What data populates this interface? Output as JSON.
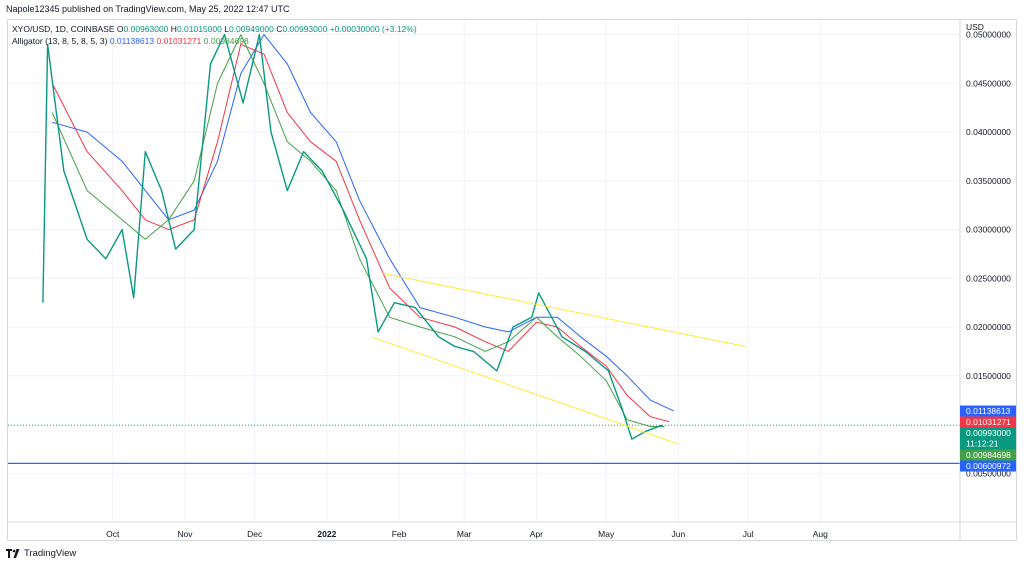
{
  "header": {
    "published": "Napole12345 published on TradingView.com, May 25, 2022 12:47 UTC"
  },
  "legend": {
    "symbol": "XYO/USD, 1D, COINBASE",
    "open_label": "O",
    "open": "0.00963000",
    "high_label": "H",
    "high": "0.01015000",
    "low_label": "L",
    "low": "0.00949000",
    "close_label": "C",
    "close": "0.00993000",
    "change": "+0.00030000 (+3.12%)",
    "indicator": "Alligator (13, 8, 5, 8, 5, 3)",
    "jaw": "0.01138613",
    "teeth": "0.01031271",
    "lips": "0.00984698"
  },
  "footer": {
    "brand": "TradingView"
  },
  "colors": {
    "up": "#089981",
    "down": "#f23645",
    "jaw": "#2962ff",
    "teeth": "#f23645",
    "lips": "#43a047",
    "channel": "#ffeb3b",
    "support": "#2962ff"
  },
  "chart_data": {
    "type": "line",
    "currency": "USD",
    "y_ticks": [
      "0.00500000",
      "0.01500000",
      "0.02000000",
      "0.02500000",
      "0.03000000",
      "0.03500000",
      "0.04000000",
      "0.04500000",
      "0.05000000"
    ],
    "y_tick_values": [
      0.005,
      0.015,
      0.02,
      0.025,
      0.03,
      0.035,
      0.04,
      0.045,
      0.05
    ],
    "ylim": [
      0.0,
      0.0515
    ],
    "x_ticks": [
      "Oct",
      "Nov",
      "Dec",
      "2022",
      "Feb",
      "Mar",
      "Apr",
      "May",
      "Jun",
      "Jul",
      "Aug"
    ],
    "x_tick_dates": [
      "2021-10-01",
      "2021-11-01",
      "2021-12-01",
      "2022-01-01",
      "2022-02-01",
      "2022-03-01",
      "2022-04-01",
      "2022-05-01",
      "2022-06-01",
      "2022-07-01",
      "2022-08-01"
    ],
    "xlim": [
      "2021-08-17",
      "2022-09-30"
    ],
    "price_labels": [
      {
        "name": "Jaw",
        "value": 0.01138613,
        "text": "0.01138613",
        "color": "#2962ff"
      },
      {
        "name": "Teeth",
        "value": 0.01031271,
        "text": "0.01031271",
        "color": "#f23645"
      },
      {
        "name": "Close",
        "value": 0.00993,
        "text": "0.00993000",
        "sub": "11:12:21",
        "color": "#089981"
      },
      {
        "name": "Lips",
        "value": 0.00984698,
        "text": "0.00984698",
        "color": "#43a047"
      },
      {
        "name": "Support",
        "value": 0.00600972,
        "text": "0.00600972",
        "color": "#2962ff"
      }
    ],
    "series": [
      {
        "name": "Jaw",
        "color": "#2962ff",
        "points": [
          [
            "2021-09-05",
            0.041
          ],
          [
            "2021-09-20",
            0.04
          ],
          [
            "2021-10-05",
            0.037
          ],
          [
            "2021-10-15",
            0.034
          ],
          [
            "2021-10-25",
            0.031
          ],
          [
            "2021-11-05",
            0.032
          ],
          [
            "2021-11-15",
            0.037
          ],
          [
            "2021-11-25",
            0.046
          ],
          [
            "2021-12-05",
            0.05
          ],
          [
            "2021-12-15",
            0.047
          ],
          [
            "2021-12-25",
            0.042
          ],
          [
            "2022-01-05",
            0.039
          ],
          [
            "2022-01-15",
            0.033
          ],
          [
            "2022-01-28",
            0.027
          ],
          [
            "2022-02-10",
            0.022
          ],
          [
            "2022-02-25",
            0.021
          ],
          [
            "2022-03-10",
            0.02
          ],
          [
            "2022-03-20",
            0.0195
          ],
          [
            "2022-04-01",
            0.021
          ],
          [
            "2022-04-10",
            0.021
          ],
          [
            "2022-04-20",
            0.019
          ],
          [
            "2022-05-01",
            0.017
          ],
          [
            "2022-05-10",
            0.015
          ],
          [
            "2022-05-20",
            0.0125
          ],
          [
            "2022-05-30",
            0.0114
          ]
        ]
      },
      {
        "name": "Teeth",
        "color": "#f23645",
        "points": [
          [
            "2021-09-05",
            0.045
          ],
          [
            "2021-09-20",
            0.038
          ],
          [
            "2021-10-05",
            0.034
          ],
          [
            "2021-10-15",
            0.031
          ],
          [
            "2021-10-25",
            0.03
          ],
          [
            "2021-11-05",
            0.031
          ],
          [
            "2021-11-15",
            0.039
          ],
          [
            "2021-11-25",
            0.049
          ],
          [
            "2021-12-05",
            0.048
          ],
          [
            "2021-12-15",
            0.042
          ],
          [
            "2021-12-25",
            0.039
          ],
          [
            "2022-01-05",
            0.037
          ],
          [
            "2022-01-15",
            0.031
          ],
          [
            "2022-01-28",
            0.024
          ],
          [
            "2022-02-10",
            0.021
          ],
          [
            "2022-02-25",
            0.02
          ],
          [
            "2022-03-10",
            0.0185
          ],
          [
            "2022-03-20",
            0.0175
          ],
          [
            "2022-04-01",
            0.0205
          ],
          [
            "2022-04-10",
            0.02
          ],
          [
            "2022-04-20",
            0.018
          ],
          [
            "2022-05-01",
            0.016
          ],
          [
            "2022-05-10",
            0.013
          ],
          [
            "2022-05-20",
            0.0108
          ],
          [
            "2022-05-28",
            0.0103
          ]
        ]
      },
      {
        "name": "Lips",
        "color": "#43a047",
        "points": [
          [
            "2021-09-05",
            0.042
          ],
          [
            "2021-09-20",
            0.034
          ],
          [
            "2021-10-05",
            0.031
          ],
          [
            "2021-10-15",
            0.029
          ],
          [
            "2021-10-25",
            0.031
          ],
          [
            "2021-11-05",
            0.035
          ],
          [
            "2021-11-15",
            0.045
          ],
          [
            "2021-11-25",
            0.05
          ],
          [
            "2021-12-05",
            0.045
          ],
          [
            "2021-12-15",
            0.039
          ],
          [
            "2021-12-25",
            0.037
          ],
          [
            "2022-01-05",
            0.034
          ],
          [
            "2022-01-15",
            0.027
          ],
          [
            "2022-01-28",
            0.021
          ],
          [
            "2022-02-10",
            0.02
          ],
          [
            "2022-02-25",
            0.019
          ],
          [
            "2022-03-10",
            0.0175
          ],
          [
            "2022-03-20",
            0.0185
          ],
          [
            "2022-04-01",
            0.021
          ],
          [
            "2022-04-10",
            0.019
          ],
          [
            "2022-04-20",
            0.017
          ],
          [
            "2022-05-01",
            0.0145
          ],
          [
            "2022-05-10",
            0.0105
          ],
          [
            "2022-05-20",
            0.0098
          ],
          [
            "2022-05-26",
            0.0098
          ]
        ]
      },
      {
        "name": "Price",
        "color": "#089981",
        "points": [
          [
            "2021-09-01",
            0.0225
          ],
          [
            "2021-09-03",
            0.049
          ],
          [
            "2021-09-10",
            0.036
          ],
          [
            "2021-09-20",
            0.029
          ],
          [
            "2021-09-28",
            0.027
          ],
          [
            "2021-10-05",
            0.03
          ],
          [
            "2021-10-10",
            0.023
          ],
          [
            "2021-10-15",
            0.038
          ],
          [
            "2021-10-22",
            0.034
          ],
          [
            "2021-10-28",
            0.028
          ],
          [
            "2021-11-05",
            0.03
          ],
          [
            "2021-11-12",
            0.047
          ],
          [
            "2021-11-18",
            0.05
          ],
          [
            "2021-11-26",
            0.043
          ],
          [
            "2021-12-03",
            0.05
          ],
          [
            "2021-12-08",
            0.04
          ],
          [
            "2021-12-15",
            0.034
          ],
          [
            "2021-12-22",
            0.038
          ],
          [
            "2021-12-30",
            0.036
          ],
          [
            "2022-01-08",
            0.032
          ],
          [
            "2022-01-18",
            0.027
          ],
          [
            "2022-01-23",
            0.0195
          ],
          [
            "2022-01-30",
            0.0225
          ],
          [
            "2022-02-08",
            0.022
          ],
          [
            "2022-02-18",
            0.019
          ],
          [
            "2022-02-25",
            0.018
          ],
          [
            "2022-03-05",
            0.0175
          ],
          [
            "2022-03-15",
            0.0155
          ],
          [
            "2022-03-22",
            0.02
          ],
          [
            "2022-03-30",
            0.021
          ],
          [
            "2022-04-02",
            0.0235
          ],
          [
            "2022-04-12",
            0.019
          ],
          [
            "2022-04-22",
            0.0175
          ],
          [
            "2022-05-02",
            0.0155
          ],
          [
            "2022-05-08",
            0.0115
          ],
          [
            "2022-05-12",
            0.0085
          ],
          [
            "2022-05-18",
            0.0093
          ],
          [
            "2022-05-25",
            0.00993
          ]
        ]
      },
      {
        "name": "Channel upper",
        "color": "#ffeb3b",
        "points": [
          [
            "2022-01-25",
            0.0255
          ],
          [
            "2022-06-30",
            0.018
          ]
        ]
      },
      {
        "name": "Channel lower",
        "color": "#ffeb3b",
        "points": [
          [
            "2022-01-20",
            0.019
          ],
          [
            "2022-06-01",
            0.008
          ]
        ]
      },
      {
        "name": "Support",
        "color": "#2962ff",
        "points": [
          [
            "2021-08-17",
            0.00600972
          ],
          [
            "2022-09-30",
            0.00600972
          ]
        ]
      }
    ]
  }
}
